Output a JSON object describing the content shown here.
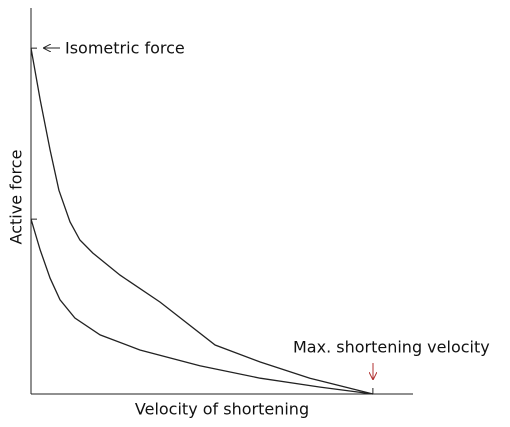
{
  "chart_data": {
    "type": "line",
    "x_label": "Velocity of shortening",
    "y_label": "Active force",
    "annotations": [
      "Isometric force",
      "Max. shortening velocity"
    ],
    "xlim": [
      0,
      100
    ],
    "ylim": [
      0,
      100
    ],
    "series": [
      {
        "color": "#222222",
        "x": [
          0,
          2.4,
          5.0,
          7.3,
          10.2,
          12.8,
          16.2,
          23.3,
          33.8,
          48.2,
          60.0,
          73.0,
          89.5
        ],
        "values": [
          89.6,
          76.2,
          63.2,
          52.8,
          44.6,
          39.9,
          36.5,
          30.8,
          23.8,
          12.7,
          8.3,
          4.1,
          0
        ]
      },
      {
        "color": "#222222",
        "x": [
          0,
          2.4,
          5.0,
          7.6,
          11.5,
          18.1,
          28.5,
          44.2,
          60.0,
          75.7,
          89.5
        ],
        "values": [
          45.3,
          37.3,
          30.0,
          24.4,
          19.7,
          15.3,
          11.4,
          7.3,
          4.1,
          1.8,
          0
        ]
      }
    ]
  }
}
